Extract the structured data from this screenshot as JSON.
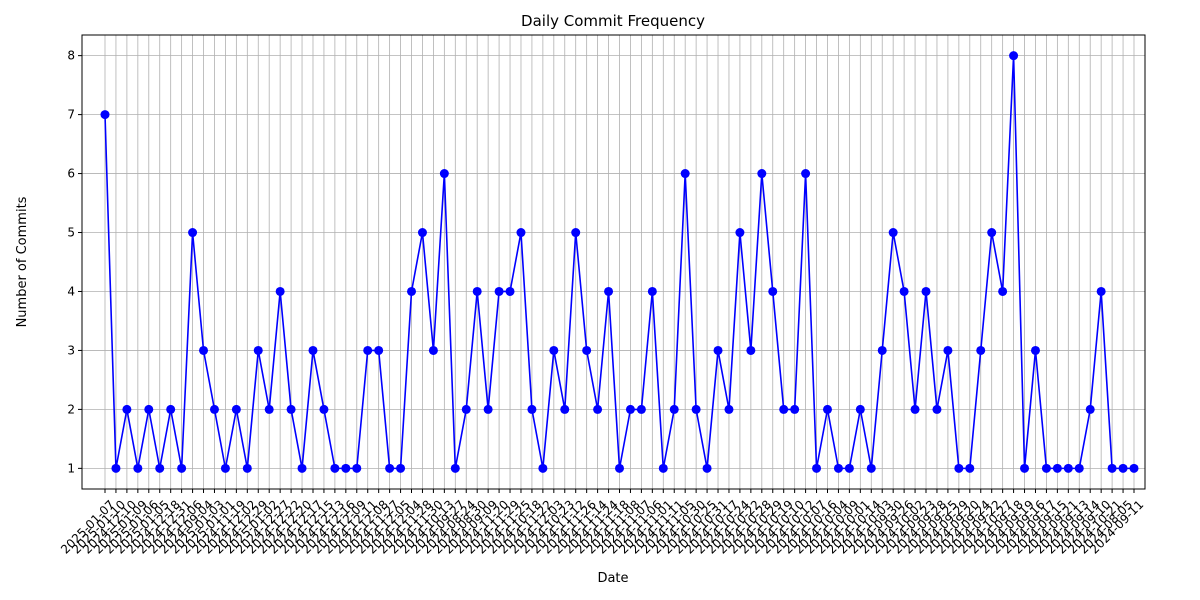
{
  "chart_data": {
    "type": "line",
    "title": "Daily Commit Frequency",
    "x_label": "Date",
    "y_label": "Number of Commits",
    "categories": [
      "2025-01-07",
      "2025-01-10",
      "2024-12-10",
      "2025-01-09",
      "2025-01-06",
      "2025-01-05",
      "2024-12-18",
      "2024-12-31",
      "2024-12-06",
      "2024-09-04",
      "2025-01-03",
      "2025-01-01",
      "2024-11-19",
      "2024-12-02",
      "2024-12-29",
      "2025-01-02",
      "2024-12-27",
      "2024-12-22",
      "2024-12-20",
      "2024-12-17",
      "2024-12-15",
      "2024-12-13",
      "2024-12-16",
      "2024-12-09",
      "2024-12-11",
      "2024-12-08",
      "2024-11-27",
      "2024-12-05",
      "2024-12-04",
      "2024-11-28",
      "2024-11-30",
      "2024-10-13",
      "2024-09-27",
      "2024-08-24",
      "2024-08-30",
      "2024-09-09",
      "2024-11-20",
      "2024-11-29",
      "2024-11-25",
      "2024-10-18",
      "2024-11-22",
      "2024-12-03",
      "2024-10-23",
      "2024-11-12",
      "2024-11-26",
      "2024-11-14",
      "2024-11-24",
      "2024-11-18",
      "2024-11-08",
      "2024-11-07",
      "2024-11-06",
      "2024-11-01",
      "2024-11-11",
      "2024-11-05",
      "2024-10-30",
      "2024-10-25",
      "2024-10-31",
      "2024-10-17",
      "2024-10-24",
      "2024-10-22",
      "2024-10-28",
      "2024-10-29",
      "2024-10-19",
      "2024-10-10",
      "2024-10-12",
      "2024-10-07",
      "2024-10-16",
      "2024-10-04",
      "2024-10-09",
      "2024-10-01",
      "2024-10-14",
      "2024-10-03",
      "2024-09-30",
      "2024-09-26",
      "2024-10-02",
      "2024-09-23",
      "2024-09-28",
      "2024-09-25",
      "2024-09-29",
      "2024-09-20",
      "2024-09-24",
      "2024-09-22",
      "2024-10-27",
      "2024-09-18",
      "2024-09-19",
      "2024-09-16",
      "2024-09-17",
      "2024-09-15",
      "2024-09-21",
      "2024-09-13",
      "2024-09-14",
      "2024-09-10",
      "2024-10-21",
      "2024-08-05",
      "2024-09-11"
    ],
    "series": [
      {
        "name": "Commits",
        "color": "#0000ff",
        "values": [
          7,
          1,
          2,
          1,
          2,
          1,
          2,
          1,
          5,
          3,
          2,
          1,
          2,
          1,
          3,
          2,
          4,
          2,
          1,
          3,
          2,
          1,
          1,
          1,
          3,
          3,
          1,
          1,
          4,
          5,
          3,
          6,
          1,
          2,
          4,
          2,
          4,
          4,
          5,
          2,
          1,
          3,
          2,
          5,
          3,
          2,
          4,
          1,
          2,
          2,
          4,
          1,
          2,
          6,
          2,
          1,
          3,
          2,
          5,
          3,
          6,
          4,
          2,
          2,
          6,
          1,
          2,
          1,
          1,
          2,
          1,
          3,
          5,
          4,
          2,
          4,
          2,
          3,
          1,
          1,
          3,
          5,
          4,
          8,
          1,
          3,
          1,
          1,
          1,
          1,
          2,
          4,
          1,
          1,
          1
        ]
      }
    ],
    "ylim": [
      0.65,
      8.35
    ],
    "yticks": [
      1,
      2,
      3,
      4,
      5,
      6,
      7,
      8
    ],
    "grid": true
  }
}
